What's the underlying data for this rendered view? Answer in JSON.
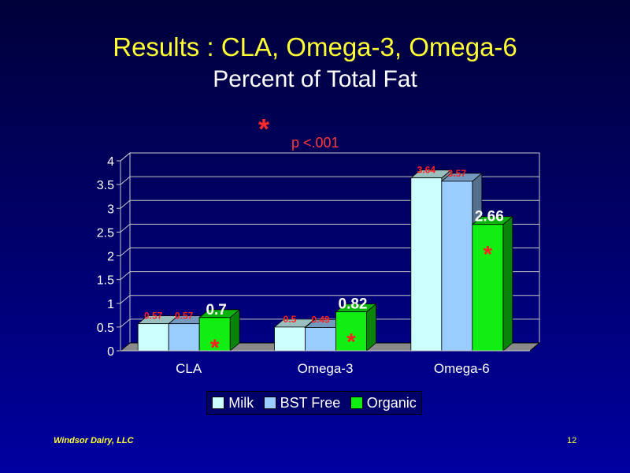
{
  "slide": {
    "title": "Results : CLA, Omega-3, Omega-6",
    "subtitle": "Percent of Total Fat",
    "note_star": "*",
    "note_text": "p <.001",
    "footer_left": "Windsor Dairy, LLC",
    "page_number": "12"
  },
  "chart_data": {
    "type": "bar",
    "categories": [
      "CLA",
      "Omega-3",
      "Omega-6"
    ],
    "series": [
      {
        "name": "Milk",
        "values": [
          0.57,
          0.5,
          3.64
        ],
        "labels": [
          "0.57",
          "0.5",
          "3.64"
        ],
        "color": "#ccffff",
        "label_color": "#ff2020"
      },
      {
        "name": "BST Free",
        "values": [
          0.57,
          0.49,
          3.57
        ],
        "labels": [
          "0.57",
          "0.49",
          "3.57"
        ],
        "color": "#99ccff",
        "label_color": "#ff2020"
      },
      {
        "name": "Organic",
        "values": [
          0.7,
          0.82,
          2.66
        ],
        "labels": [
          "0.7",
          "0.82",
          "2.66"
        ],
        "color": "#11ee11",
        "label_color": "#ffffff"
      }
    ],
    "significance_marker": "*",
    "significance_marker_color": "#ff2020",
    "y_ticks": [
      "0",
      "0.5",
      "1",
      "1.5",
      "2",
      "2.5",
      "3",
      "3.5",
      "4"
    ],
    "ylim": [
      0,
      4
    ],
    "grid": true,
    "legend_position": "bottom",
    "xlabel": "",
    "ylabel": ""
  }
}
